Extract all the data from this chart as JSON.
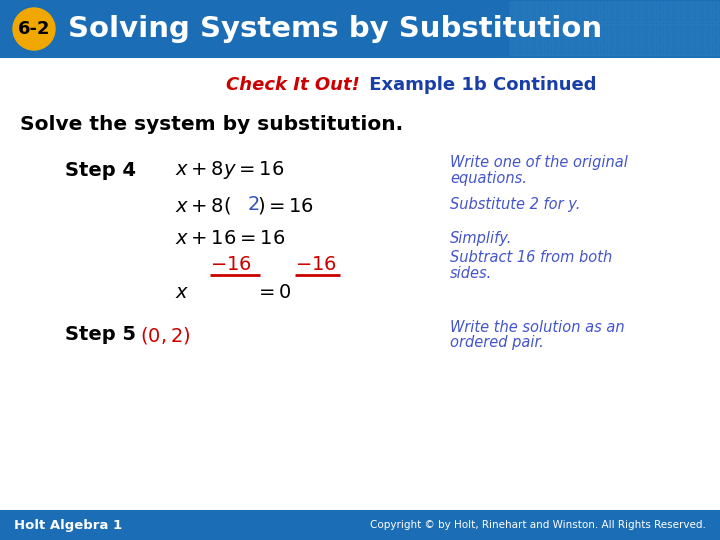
{
  "header_bg_color": "#1b6db5",
  "header_text": "Solving Systems by Substitution",
  "badge_text": "6-2",
  "badge_bg": "#f0a800",
  "subtitle_red": "Check It Out!",
  "subtitle_blue": " Example 1b Continued",
  "main_text": "Solve the system by substitution.",
  "footer_bg": "#1b6db5",
  "footer_left": "Holt Algebra 1",
  "footer_right": "Copyright © by Holt, Rinehart and Winston. All Rights Reserved.",
  "bg_color": "#ffffff",
  "step4_label": "Step 4",
  "step5_label": "Step 5",
  "blue_color": "#1a3ea8",
  "red_color": "#cc0000",
  "italic_blue": "#4455cc",
  "grid_color": "#4488cc"
}
